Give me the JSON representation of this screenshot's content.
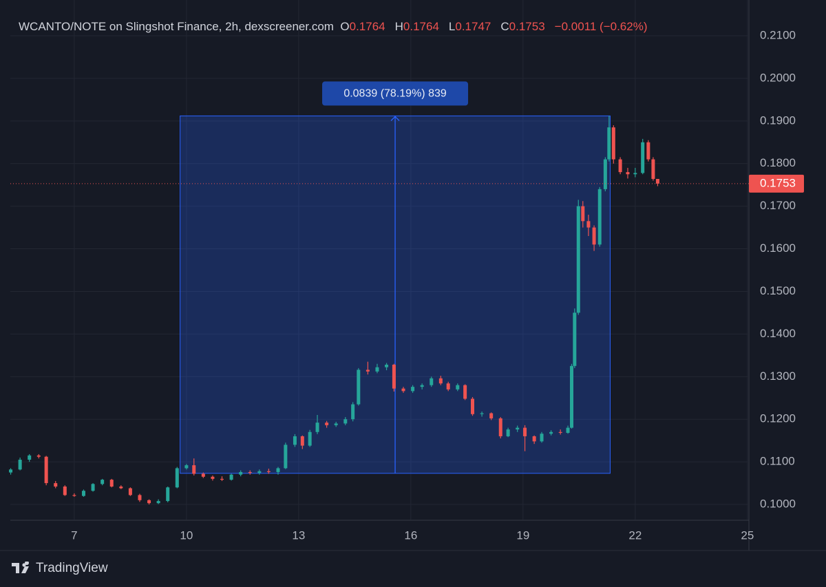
{
  "chart_data": {
    "type": "candlestick",
    "title": "WCANTO/NOTE on Slingshot Finance, 2h, dexscreener.com",
    "ohlc_labels": [
      "O",
      "H",
      "L",
      "C"
    ],
    "change_label": "−0.0011 (−0.62%)",
    "brand": "TradingView",
    "up_color": "#26a69a",
    "down_color": "#ef5350",
    "grid": true,
    "xlim": [
      5.29,
      25.04
    ],
    "xticks": [
      7,
      10,
      13,
      16,
      19,
      22,
      25
    ],
    "ylim": [
      0.09645,
      0.2184
    ],
    "yticks": [
      {
        "value": 0.1,
        "label": "0.1000"
      },
      {
        "value": 0.11,
        "label": "0.1100"
      },
      {
        "value": 0.12,
        "label": "0.1200"
      },
      {
        "value": 0.13,
        "label": "0.1300"
      },
      {
        "value": 0.14,
        "label": "0.1400"
      },
      {
        "value": 0.15,
        "label": "0.1500"
      },
      {
        "value": 0.16,
        "label": "0.1600"
      },
      {
        "value": 0.17,
        "label": "0.1700"
      },
      {
        "value": 0.18,
        "label": "0.1800"
      },
      {
        "value": 0.19,
        "label": "0.1900"
      },
      {
        "value": 0.2,
        "label": "0.2000"
      },
      {
        "value": 0.21,
        "label": "0.2100"
      }
    ],
    "measure": {
      "label": "0.0839 (78.19%) 839",
      "x": [
        9.83,
        21.33
      ],
      "y": [
        0.1073,
        0.1912
      ]
    },
    "candles": {
      "x": [
        5.3,
        5.55,
        5.8,
        6.05,
        6.25,
        6.5,
        6.75,
        7.0,
        7.25,
        7.5,
        7.75,
        8.0,
        8.25,
        8.5,
        8.75,
        9.0,
        9.25,
        9.5,
        9.75,
        10.0,
        10.2,
        10.45,
        10.7,
        10.95,
        11.2,
        11.45,
        11.7,
        11.95,
        12.2,
        12.45,
        12.65,
        12.9,
        13.1,
        13.3,
        13.5,
        13.75,
        14.0,
        14.25,
        14.45,
        14.6,
        14.85,
        15.1,
        15.35,
        15.55,
        15.8,
        16.05,
        16.3,
        16.55,
        16.8,
        17.0,
        17.25,
        17.45,
        17.65,
        17.9,
        18.15,
        18.4,
        18.6,
        18.85,
        19.05,
        19.3,
        19.5,
        19.75,
        20.0,
        20.2,
        20.3,
        20.38,
        20.48,
        20.6,
        20.75,
        20.9,
        21.05,
        21.2,
        21.3,
        21.42,
        21.6,
        21.8,
        22.0,
        22.2,
        22.35,
        22.48,
        22.6
      ],
      "open": [
        0.1075,
        0.1082,
        0.1105,
        0.1115,
        0.1112,
        0.105,
        0.1042,
        0.1022,
        0.102,
        0.1032,
        0.1048,
        0.1058,
        0.1042,
        0.1038,
        0.1022,
        0.101,
        0.1003,
        0.1008,
        0.104,
        0.1085,
        0.1092,
        0.1072,
        0.1065,
        0.106,
        0.1058,
        0.107,
        0.1076,
        0.1074,
        0.1078,
        0.1076,
        0.1085,
        0.114,
        0.116,
        0.1138,
        0.117,
        0.1192,
        0.1186,
        0.119,
        0.12,
        0.1235,
        0.1316,
        0.1312,
        0.1322,
        0.1328,
        0.1272,
        0.1266,
        0.1276,
        0.128,
        0.1296,
        0.1284,
        0.127,
        0.128,
        0.1248,
        0.1212,
        0.1214,
        0.1202,
        0.116,
        0.1176,
        0.118,
        0.116,
        0.1148,
        0.1166,
        0.117,
        0.1168,
        0.118,
        0.1325,
        0.145,
        0.17,
        0.1665,
        0.165,
        0.161,
        0.174,
        0.181,
        0.1885,
        0.181,
        0.178,
        0.1775,
        0.1778,
        0.185,
        0.181,
        0.1764
      ],
      "high": [
        0.1085,
        0.111,
        0.1118,
        0.1118,
        0.1114,
        0.1055,
        0.1045,
        0.1026,
        0.1035,
        0.105,
        0.106,
        0.106,
        0.1045,
        0.104,
        0.1025,
        0.1012,
        0.1012,
        0.1042,
        0.1088,
        0.1095,
        0.1108,
        0.1075,
        0.1068,
        0.1066,
        0.1072,
        0.108,
        0.108,
        0.1082,
        0.1084,
        0.1088,
        0.1145,
        0.1165,
        0.1162,
        0.1175,
        0.121,
        0.1196,
        0.1194,
        0.1205,
        0.124,
        0.132,
        0.1335,
        0.133,
        0.1332,
        0.133,
        0.1276,
        0.128,
        0.1284,
        0.13,
        0.1302,
        0.1288,
        0.1284,
        0.1282,
        0.1252,
        0.1218,
        0.1216,
        0.1205,
        0.118,
        0.1185,
        0.1186,
        0.1162,
        0.117,
        0.1174,
        0.1176,
        0.1185,
        0.133,
        0.146,
        0.1715,
        0.1712,
        0.168,
        0.1655,
        0.1745,
        0.1815,
        0.1912,
        0.189,
        0.1815,
        0.179,
        0.179,
        0.1858,
        0.1855,
        0.1815,
        0.1764
      ],
      "low": [
        0.107,
        0.108,
        0.11,
        0.1108,
        0.1045,
        0.1038,
        0.102,
        0.1018,
        0.1018,
        0.103,
        0.1045,
        0.104,
        0.1036,
        0.102,
        0.1006,
        0.1,
        0.1001,
        0.1005,
        0.1038,
        0.1082,
        0.1068,
        0.1062,
        0.1056,
        0.1055,
        0.1056,
        0.1066,
        0.107,
        0.107,
        0.1072,
        0.107,
        0.1083,
        0.1135,
        0.113,
        0.1135,
        0.1165,
        0.118,
        0.1182,
        0.1186,
        0.1195,
        0.1232,
        0.1305,
        0.1308,
        0.1315,
        0.1265,
        0.1262,
        0.1262,
        0.127,
        0.1276,
        0.128,
        0.1266,
        0.1266,
        0.1245,
        0.1208,
        0.1206,
        0.1198,
        0.1155,
        0.1158,
        0.117,
        0.1125,
        0.1142,
        0.1145,
        0.1162,
        0.1164,
        0.1166,
        0.1178,
        0.132,
        0.1445,
        0.165,
        0.163,
        0.1595,
        0.1605,
        0.1735,
        0.1805,
        0.18,
        0.1775,
        0.1765,
        0.1768,
        0.1775,
        0.1805,
        0.176,
        0.1747
      ],
      "close": [
        0.1082,
        0.1105,
        0.1115,
        0.1112,
        0.105,
        0.1042,
        0.1022,
        0.102,
        0.1032,
        0.1048,
        0.1058,
        0.1042,
        0.1038,
        0.1022,
        0.101,
        0.1003,
        0.1008,
        0.104,
        0.1085,
        0.1092,
        0.1072,
        0.1065,
        0.106,
        0.1058,
        0.107,
        0.1076,
        0.1074,
        0.1078,
        0.1076,
        0.1085,
        0.114,
        0.116,
        0.1138,
        0.117,
        0.1192,
        0.1186,
        0.119,
        0.12,
        0.1235,
        0.1316,
        0.1312,
        0.1322,
        0.1328,
        0.1272,
        0.1266,
        0.1276,
        0.128,
        0.1296,
        0.1284,
        0.127,
        0.128,
        0.1248,
        0.1212,
        0.1214,
        0.1202,
        0.116,
        0.1176,
        0.118,
        0.116,
        0.1148,
        0.1166,
        0.117,
        0.1168,
        0.118,
        0.1325,
        0.145,
        0.17,
        0.1665,
        0.165,
        0.161,
        0.174,
        0.181,
        0.1885,
        0.181,
        0.178,
        0.1775,
        0.1778,
        0.185,
        0.181,
        0.1764,
        0.1753
      ]
    }
  }
}
